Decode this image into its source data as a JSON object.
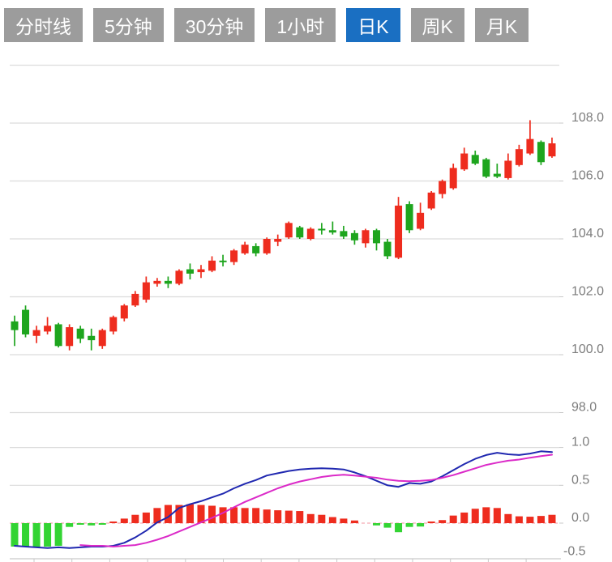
{
  "toolbar": {
    "buttons": [
      {
        "label": "分时线",
        "active": false
      },
      {
        "label": "5分钟",
        "active": false
      },
      {
        "label": "30分钟",
        "active": false
      },
      {
        "label": "1小时",
        "active": false
      },
      {
        "label": "日K",
        "active": true
      },
      {
        "label": "周K",
        "active": false
      },
      {
        "label": "月K",
        "active": false
      }
    ]
  },
  "colors": {
    "button_bg": "#9c9c9c",
    "button_active_bg": "#1a6fc2",
    "button_text": "#ffffff",
    "candle_up": "#ee2c1e",
    "candle_down": "#1ea51e",
    "hist_up": "#ee2c1e",
    "hist_down": "#33d433",
    "dif_line": "#2028b0",
    "dea_line": "#db2ac8",
    "grid": "#dcdcdc",
    "axis": "#c9c9c9",
    "zero_line": "#f5aab4",
    "axis_text": "#7d7d7d"
  },
  "chart_data": {
    "type": "candlestick_with_macd",
    "title": "",
    "legend": "none",
    "grid": true,
    "price_panel": {
      "ylabel": "",
      "ylim": [
        97.5,
        110.0
      ],
      "y_ticks": [
        {
          "value": 110.0,
          "label": ""
        },
        {
          "value": 108.0,
          "label": "108.0"
        },
        {
          "value": 106.0,
          "label": "106.0"
        },
        {
          "value": 104.0,
          "label": "104.0"
        },
        {
          "value": 102.0,
          "label": "102.0"
        },
        {
          "value": 100.0,
          "label": "100.0"
        },
        {
          "value": 98.0,
          "label": "98.0"
        }
      ],
      "ohlc_order": [
        "open",
        "high",
        "low",
        "close"
      ],
      "up_means": "close_greater_than_open_drawn_red",
      "candles": [
        [
          101.15,
          101.35,
          100.3,
          100.85
        ],
        [
          101.55,
          101.7,
          100.6,
          100.7
        ],
        [
          100.65,
          101.0,
          100.4,
          100.85
        ],
        [
          100.8,
          101.3,
          100.7,
          101.0
        ],
        [
          101.05,
          101.1,
          100.25,
          100.3
        ],
        [
          100.3,
          101.05,
          100.15,
          100.95
        ],
        [
          100.9,
          101.0,
          100.4,
          100.55
        ],
        [
          100.65,
          100.9,
          100.15,
          100.5
        ],
        [
          100.3,
          100.9,
          100.2,
          100.85
        ],
        [
          100.8,
          101.35,
          100.7,
          101.3
        ],
        [
          101.25,
          101.75,
          101.15,
          101.7
        ],
        [
          101.7,
          102.2,
          101.65,
          102.1
        ],
        [
          101.9,
          102.7,
          101.8,
          102.5
        ],
        [
          102.45,
          102.65,
          102.35,
          102.55
        ],
        [
          102.55,
          102.7,
          102.3,
          102.45
        ],
        [
          102.45,
          102.95,
          102.4,
          102.9
        ],
        [
          102.95,
          103.15,
          102.6,
          102.8
        ],
        [
          102.85,
          103.1,
          102.65,
          102.95
        ],
        [
          102.9,
          103.4,
          102.85,
          103.25
        ],
        [
          103.25,
          103.45,
          103.05,
          103.2
        ],
        [
          103.2,
          103.65,
          103.1,
          103.6
        ],
        [
          103.5,
          103.9,
          103.45,
          103.8
        ],
        [
          103.75,
          103.85,
          103.4,
          103.5
        ],
        [
          103.5,
          104.05,
          103.45,
          104.0
        ],
        [
          103.9,
          104.15,
          103.75,
          104.0
        ],
        [
          104.05,
          104.6,
          104.0,
          104.55
        ],
        [
          104.4,
          104.45,
          104.0,
          104.05
        ],
        [
          104.0,
          104.4,
          103.95,
          104.35
        ],
        [
          104.35,
          104.55,
          104.15,
          104.3
        ],
        [
          104.3,
          104.6,
          104.15,
          104.22
        ],
        [
          104.27,
          104.45,
          104.0,
          104.08
        ],
        [
          104.2,
          104.3,
          103.8,
          103.95
        ],
        [
          103.85,
          104.35,
          103.7,
          104.3
        ],
        [
          104.3,
          104.35,
          103.6,
          103.85
        ],
        [
          103.9,
          104.0,
          103.3,
          103.4
        ],
        [
          103.35,
          105.45,
          103.3,
          105.15
        ],
        [
          105.2,
          105.3,
          104.2,
          104.3
        ],
        [
          104.35,
          105.25,
          104.3,
          104.9
        ],
        [
          105.05,
          105.65,
          105.0,
          105.6
        ],
        [
          105.55,
          106.05,
          105.4,
          106.0
        ],
        [
          105.75,
          106.6,
          105.7,
          106.45
        ],
        [
          106.4,
          107.15,
          106.35,
          106.95
        ],
        [
          106.9,
          107.05,
          106.55,
          106.6
        ],
        [
          106.75,
          106.8,
          106.1,
          106.15
        ],
        [
          106.25,
          106.6,
          106.1,
          106.15
        ],
        [
          106.1,
          106.95,
          106.05,
          106.7
        ],
        [
          106.55,
          107.25,
          106.5,
          107.1
        ],
        [
          106.95,
          108.1,
          106.9,
          107.45
        ],
        [
          107.35,
          107.4,
          106.55,
          106.65
        ],
        [
          106.85,
          107.5,
          106.8,
          107.3
        ]
      ]
    },
    "macd_panel": {
      "ylabel": "",
      "ylim": [
        -0.6,
        1.1
      ],
      "y_ticks": [
        {
          "value": 1.0,
          "label": "1.0",
          "line": "solid"
        },
        {
          "value": 0.5,
          "label": "0.5",
          "line": "solid"
        },
        {
          "value": 0.0,
          "label": "0.0",
          "line": "zero"
        },
        {
          "value": -0.5,
          "label": "-0.5",
          "line": "none"
        }
      ],
      "histogram": [
        -0.31,
        -0.31,
        -0.32,
        -0.31,
        -0.3,
        -0.05,
        -0.02,
        -0.03,
        -0.02,
        0.02,
        0.06,
        0.11,
        0.14,
        0.2,
        0.24,
        0.24,
        0.25,
        0.24,
        0.23,
        0.21,
        0.21,
        0.2,
        0.2,
        0.18,
        0.17,
        0.165,
        0.16,
        0.12,
        0.11,
        0.08,
        0.06,
        0.035,
        0.0,
        -0.03,
        -0.06,
        -0.12,
        -0.05,
        -0.045,
        0.01,
        0.04,
        0.1,
        0.14,
        0.19,
        0.21,
        0.2,
        0.12,
        0.09,
        0.085,
        0.095,
        0.11
      ],
      "series": [
        {
          "name": "DIF",
          "values": [
            -0.3,
            -0.31,
            -0.32,
            -0.33,
            -0.32,
            -0.33,
            -0.32,
            -0.31,
            -0.31,
            -0.3,
            -0.26,
            -0.19,
            -0.1,
            0.01,
            0.08,
            0.2,
            0.25,
            0.29,
            0.34,
            0.39,
            0.46,
            0.52,
            0.57,
            0.63,
            0.66,
            0.69,
            0.71,
            0.72,
            0.725,
            0.72,
            0.71,
            0.67,
            0.62,
            0.56,
            0.5,
            0.48,
            0.53,
            0.52,
            0.55,
            0.62,
            0.7,
            0.78,
            0.85,
            0.9,
            0.93,
            0.91,
            0.9,
            0.92,
            0.95,
            0.94
          ]
        },
        {
          "name": "DEA",
          "values": [
            null,
            null,
            null,
            null,
            null,
            null,
            -0.29,
            -0.3,
            -0.3,
            -0.31,
            -0.3,
            -0.29,
            -0.26,
            -0.22,
            -0.17,
            -0.11,
            -0.05,
            0.01,
            0.07,
            0.135,
            0.21,
            0.28,
            0.34,
            0.4,
            0.46,
            0.51,
            0.55,
            0.58,
            0.61,
            0.63,
            0.64,
            0.63,
            0.615,
            0.6,
            0.575,
            0.56,
            0.555,
            0.56,
            0.57,
            0.6,
            0.635,
            0.68,
            0.725,
            0.77,
            0.8,
            0.825,
            0.84,
            0.865,
            0.885,
            0.905
          ]
        }
      ]
    }
  }
}
